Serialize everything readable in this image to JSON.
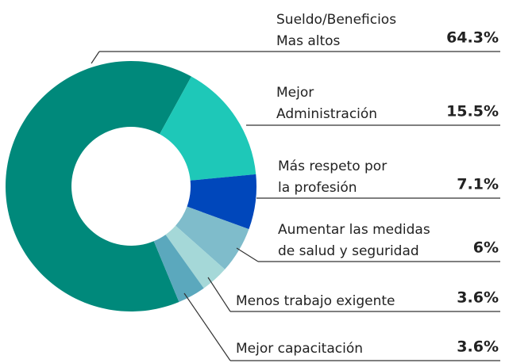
{
  "chart_data": {
    "type": "donut",
    "categories": [
      [
        "Sueldo/Beneficios",
        "Mas altos"
      ],
      [
        "Mejor",
        "Administración"
      ],
      [
        "Más respeto por",
        "la profesión"
      ],
      [
        "Aumentar las medidas",
        "de salud y seguridad"
      ],
      [
        "Menos trabajo exigente"
      ],
      [
        "Mejor capacitación"
      ]
    ],
    "values": [
      64.3,
      15.5,
      7.1,
      6,
      3.6,
      3.6
    ],
    "value_labels": [
      "64.3%",
      "15.5%",
      "7.1%",
      "6%",
      "3.6%",
      "3.6%"
    ],
    "colors": [
      "#00897b",
      "#1ec8b8",
      "#0047bb",
      "#7fbccb",
      "#a5d8d8",
      "#5ba8bd"
    ]
  }
}
